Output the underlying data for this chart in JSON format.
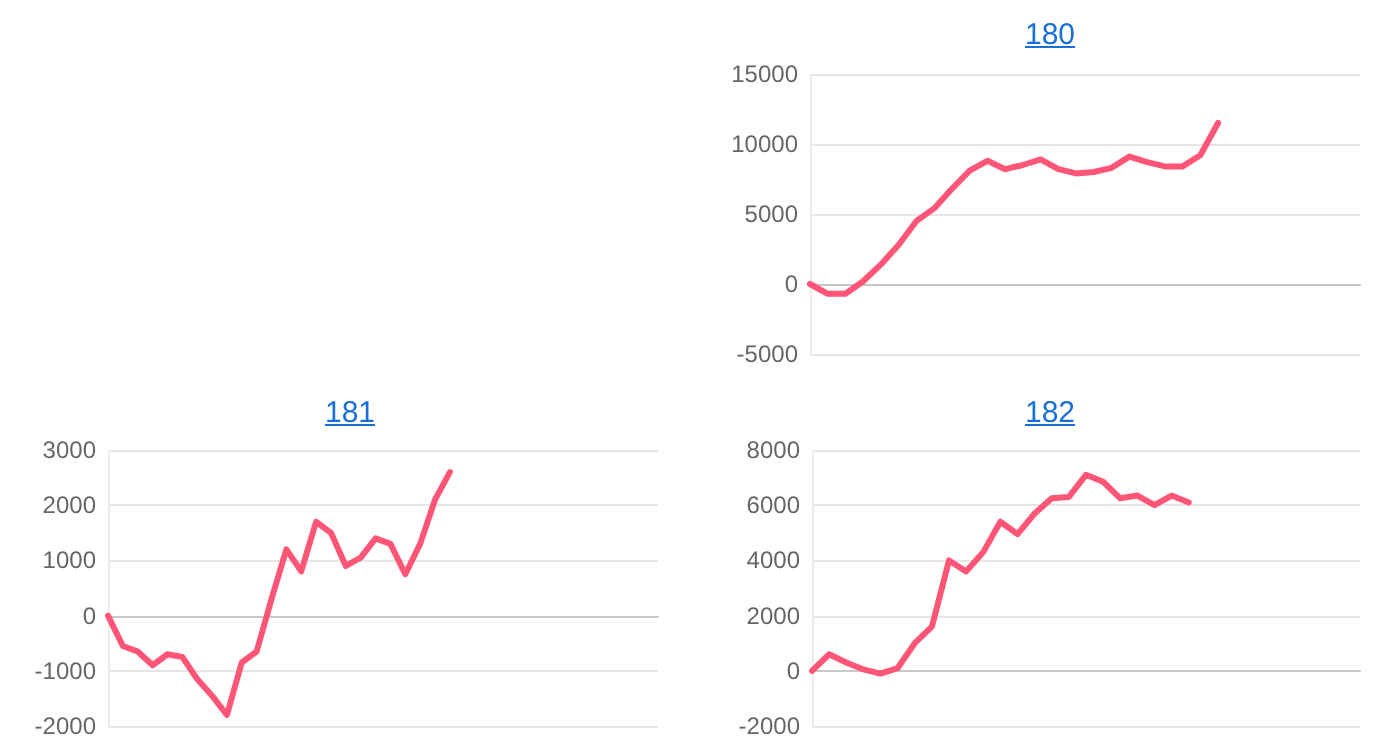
{
  "chart_data": [
    {
      "type": "line",
      "title": "180",
      "categories": [
        null,
        null,
        null,
        null,
        null,
        null,
        null,
        null,
        null,
        null,
        null,
        null,
        null,
        null,
        null,
        null,
        null,
        null,
        null,
        null,
        null,
        null,
        null,
        null,
        null,
        null,
        null,
        null,
        null,
        null,
        null,
        null
      ],
      "series": [
        {
          "color": "#ff5577",
          "values": [
            0,
            -700,
            -700,
            200,
            1400,
            2800,
            4500,
            5400,
            6800,
            8100,
            8800,
            8200,
            8500,
            8900,
            8200,
            7900,
            8000,
            8300,
            9100,
            8700,
            8400,
            8400,
            9200,
            11500,
            null,
            null,
            null,
            null,
            null,
            null,
            null,
            null
          ]
        }
      ],
      "ylim": [
        -5000,
        15000
      ],
      "yticks": [
        -5000,
        0,
        5000,
        10000,
        15000
      ],
      "grid": "y",
      "tick_labels": "y",
      "line_style": "solid"
    },
    {
      "type": "line",
      "title": "181",
      "categories": [
        null,
        null,
        null,
        null,
        null,
        null,
        null,
        null,
        null,
        null,
        null,
        null,
        null,
        null,
        null,
        null,
        null,
        null,
        null,
        null,
        null,
        null,
        null,
        null,
        null,
        null,
        null,
        null,
        null,
        null,
        null,
        null,
        null,
        null,
        null,
        null,
        null,
        null
      ],
      "series": [
        {
          "color": "#ff5577",
          "values": [
            0,
            -550,
            -650,
            -900,
            -700,
            -750,
            -1150,
            -1450,
            -1800,
            -850,
            -650,
            300,
            1200,
            800,
            1700,
            1500,
            900,
            1050,
            1400,
            1300,
            750,
            1300,
            2100,
            2600,
            null,
            null,
            null,
            null,
            null,
            null,
            null,
            null,
            null,
            null,
            null,
            null,
            null,
            null
          ]
        }
      ],
      "ylim": [
        -2000,
        3000
      ],
      "yticks": [
        -2000,
        -1000,
        0,
        1000,
        2000,
        3000
      ],
      "grid": "y",
      "tick_labels": "y",
      "line_style": "solid"
    },
    {
      "type": "line",
      "title": "182",
      "categories": [
        null,
        null,
        null,
        null,
        null,
        null,
        null,
        null,
        null,
        null,
        null,
        null,
        null,
        null,
        null,
        null,
        null,
        null,
        null,
        null,
        null,
        null,
        null,
        null,
        null,
        null,
        null,
        null,
        null,
        null,
        null,
        null,
        null
      ],
      "series": [
        {
          "color": "#ff5577",
          "values": [
            0,
            600,
            300,
            50,
            -100,
            100,
            1000,
            1600,
            4000,
            3600,
            4300,
            5400,
            4950,
            5700,
            6250,
            6300,
            7100,
            6850,
            6250,
            6350,
            6000,
            6350,
            6100,
            null,
            null,
            null,
            null,
            null,
            null,
            null,
            null,
            null,
            null
          ]
        }
      ],
      "ylim": [
        -2000,
        8000
      ],
      "yticks": [
        -2000,
        0,
        2000,
        4000,
        6000,
        8000
      ],
      "grid": "y",
      "tick_labels": "y",
      "line_style": "solid"
    }
  ]
}
